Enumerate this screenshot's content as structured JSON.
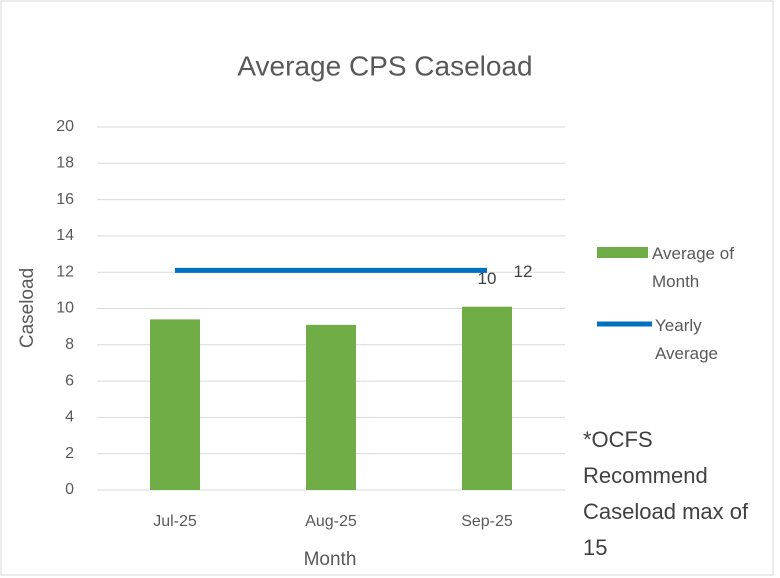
{
  "chart_data": {
    "type": "bar_line",
    "title": "Average CPS Caseload",
    "x_label": "Month",
    "y_label": "Caseload",
    "categories": [
      "Jul-25",
      "Aug-25",
      "Sep-25"
    ],
    "series": [
      {
        "name": "Average of Month",
        "type": "bar",
        "color": "#70ad47",
        "values": [
          9.4,
          9.1,
          10.1
        ],
        "value_labels": [
          null,
          null,
          "10"
        ]
      },
      {
        "name": "Yearly Average",
        "type": "line",
        "color": "#0070c0",
        "values": [
          12.1,
          12.1,
          12.1
        ],
        "value_labels": [
          null,
          null,
          "12"
        ]
      }
    ],
    "ylim": [
      0,
      20
    ],
    "yticks": [
      0,
      2,
      4,
      6,
      8,
      10,
      12,
      14,
      16,
      18,
      20
    ],
    "grid": true,
    "legend": "right",
    "annotation": "*OCFS Recommend Caseload max of 15"
  }
}
